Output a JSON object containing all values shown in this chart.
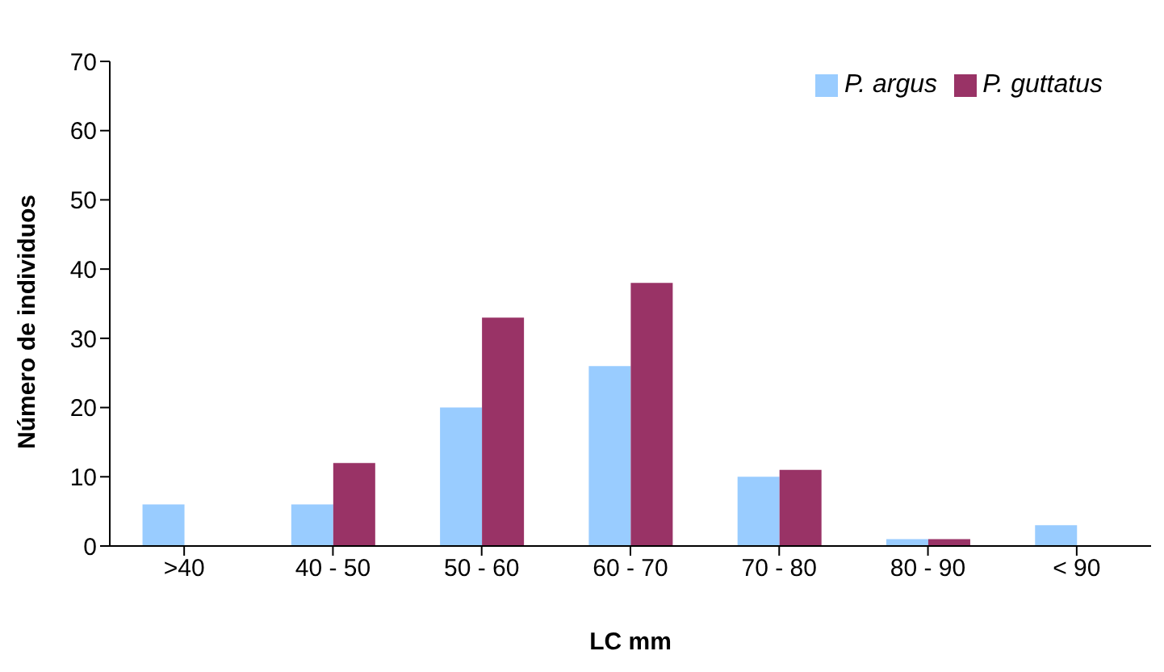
{
  "chart_data": {
    "type": "bar",
    "xlabel": "LC mm",
    "ylabel": "Número de individuos",
    "categories": [
      ">40",
      "40 - 50",
      "50 - 60",
      "60 - 70",
      "70 - 80",
      "80 - 90",
      "< 90"
    ],
    "series": [
      {
        "name": "P. argus",
        "color": "#99ccff",
        "values": [
          6,
          6,
          20,
          26,
          10,
          1,
          3
        ]
      },
      {
        "name": "P. guttatus",
        "color": "#993366",
        "values": [
          0,
          12,
          33,
          38,
          11,
          1,
          0
        ]
      }
    ],
    "ylim": [
      0,
      70
    ],
    "yticks": [
      0,
      10,
      20,
      30,
      40,
      50,
      60,
      70
    ],
    "grid": false,
    "legend": "top right"
  }
}
